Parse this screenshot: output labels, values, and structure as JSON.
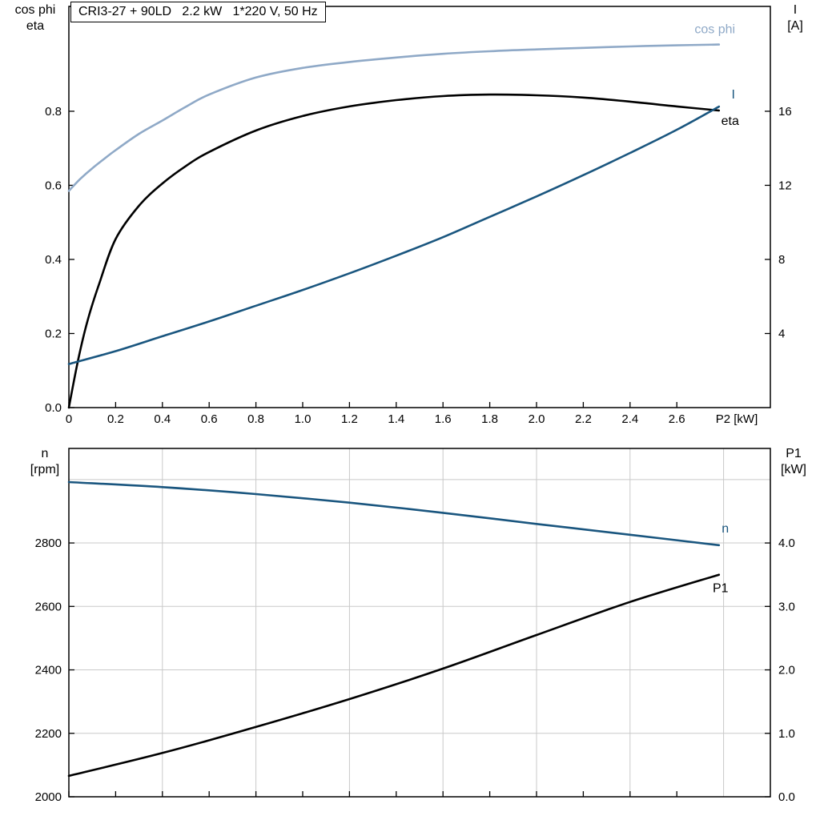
{
  "colors": {
    "light_blue": "#8fa9c7",
    "dark_blue": "#1a567f",
    "black": "#000000",
    "grid": "#c9c9c9"
  },
  "chart_data": [
    {
      "type": "line",
      "title": "CRI3-27 + 90LD   2.2 kW   1*220 V, 50 Hz",
      "x_axis": {
        "label": "P2 [kW]",
        "range": [
          0,
          3.0
        ],
        "tick_values": [
          0,
          0.2,
          0.4,
          0.6,
          0.8,
          1.0,
          1.2,
          1.4,
          1.6,
          1.8,
          2.0,
          2.2,
          2.4,
          2.6
        ],
        "tick_labels": [
          "0",
          "0.2",
          "0.4",
          "0.6",
          "0.8",
          "1.0",
          "1.2",
          "1.4",
          "1.6",
          "1.8",
          "2.0",
          "2.2",
          "2.4",
          "2.6"
        ]
      },
      "left_axis": {
        "label_lines": [
          "cos phi",
          "eta"
        ],
        "range": [
          0,
          1.083
        ],
        "tick_values": [
          0.0,
          0.2,
          0.4,
          0.6,
          0.8
        ],
        "tick_labels": [
          "0.0",
          "0.2",
          "0.4",
          "0.6",
          "0.8"
        ]
      },
      "right_axis": {
        "label_lines": [
          "I",
          "[A]"
        ],
        "range": [
          0,
          21.66
        ],
        "tick_values": [
          4,
          8,
          12,
          16
        ],
        "tick_labels": [
          "4",
          "8",
          "12",
          "16"
        ]
      },
      "grid": {
        "vertical": [],
        "horizontal": []
      },
      "series": [
        {
          "name": "cos phi",
          "axis": "left",
          "color": "#8fa9c7",
          "label": {
            "text": "cos phi",
            "dx": -5,
            "dy": -14,
            "anchor": "middle"
          },
          "x": [
            0,
            0.05,
            0.1,
            0.15,
            0.2,
            0.3,
            0.4,
            0.5,
            0.6,
            0.8,
            1.0,
            1.2,
            1.4,
            1.6,
            1.8,
            2.0,
            2.2,
            2.4,
            2.6,
            2.78
          ],
          "values": [
            0.585,
            0.618,
            0.646,
            0.671,
            0.695,
            0.739,
            0.775,
            0.812,
            0.845,
            0.891,
            0.917,
            0.933,
            0.945,
            0.955,
            0.962,
            0.967,
            0.971,
            0.975,
            0.978,
            0.98
          ]
        },
        {
          "name": "eta",
          "axis": "left",
          "color": "#000000",
          "label": {
            "text": "eta",
            "dx": 14,
            "dy": 18,
            "anchor": "middle"
          },
          "x": [
            0,
            0.04,
            0.08,
            0.13,
            0.2,
            0.3,
            0.4,
            0.5,
            0.6,
            0.8,
            1.0,
            1.2,
            1.4,
            1.6,
            1.8,
            2.0,
            2.2,
            2.4,
            2.6,
            2.78
          ],
          "values": [
            0,
            0.13,
            0.235,
            0.335,
            0.455,
            0.545,
            0.605,
            0.652,
            0.69,
            0.748,
            0.787,
            0.813,
            0.83,
            0.841,
            0.845,
            0.843,
            0.837,
            0.826,
            0.813,
            0.802
          ]
        },
        {
          "name": "I",
          "axis": "right",
          "color": "#1a567f",
          "label": {
            "text": "I",
            "dx": 18,
            "dy": -10,
            "anchor": "middle"
          },
          "x": [
            0,
            0.2,
            0.4,
            0.6,
            0.8,
            1.0,
            1.2,
            1.4,
            1.6,
            1.8,
            2.0,
            2.2,
            2.4,
            2.6,
            2.78
          ],
          "values": [
            2.35,
            3.05,
            3.85,
            4.65,
            5.5,
            6.35,
            7.25,
            8.2,
            9.2,
            10.3,
            11.4,
            12.55,
            13.75,
            15.0,
            16.25
          ]
        }
      ]
    },
    {
      "type": "line",
      "title": "",
      "x_axis": {
        "label": "",
        "range": [
          0,
          3.0
        ],
        "tick_values": [
          0,
          0.2,
          0.4,
          0.6,
          0.8,
          1.0,
          1.2,
          1.4,
          1.6,
          1.8,
          2.0,
          2.2,
          2.4,
          2.6
        ],
        "tick_labels": []
      },
      "left_axis": {
        "label_lines": [
          "n",
          "[rpm]"
        ],
        "range": [
          2000,
          3098
        ],
        "tick_values": [
          2000,
          2200,
          2400,
          2600,
          2800
        ],
        "tick_labels": [
          "2000",
          "2200",
          "2400",
          "2600",
          "2800"
        ]
      },
      "right_axis": {
        "label_lines": [
          "P1",
          "[kW]"
        ],
        "range": [
          0,
          5.49
        ],
        "tick_values": [
          0,
          1,
          2,
          3,
          4
        ],
        "tick_labels": [
          "0.0",
          "1.0",
          "2.0",
          "3.0",
          "4.0"
        ]
      },
      "grid": {
        "vertical": [
          0.4,
          0.8,
          1.2,
          1.6,
          2.0,
          2.4,
          2.8
        ],
        "horizontal": [
          2200,
          2400,
          2600,
          2800,
          3000
        ]
      },
      "series": [
        {
          "name": "n",
          "axis": "left",
          "color": "#1a567f",
          "label": {
            "text": "n",
            "dx": 8,
            "dy": -16,
            "anchor": "middle"
          },
          "x": [
            0,
            0.4,
            0.8,
            1.2,
            1.6,
            2.0,
            2.4,
            2.78
          ],
          "values": [
            2992,
            2976,
            2954,
            2927,
            2895,
            2860,
            2826,
            2793
          ]
        },
        {
          "name": "P1",
          "axis": "right",
          "color": "#000000",
          "label": {
            "text": "P1",
            "dx": 2,
            "dy": 22,
            "anchor": "middle"
          },
          "x": [
            0,
            0.4,
            0.8,
            1.2,
            1.6,
            2.0,
            2.4,
            2.78
          ],
          "values": [
            0.33,
            0.69,
            1.1,
            1.54,
            2.02,
            2.55,
            3.07,
            3.5
          ]
        }
      ]
    }
  ]
}
